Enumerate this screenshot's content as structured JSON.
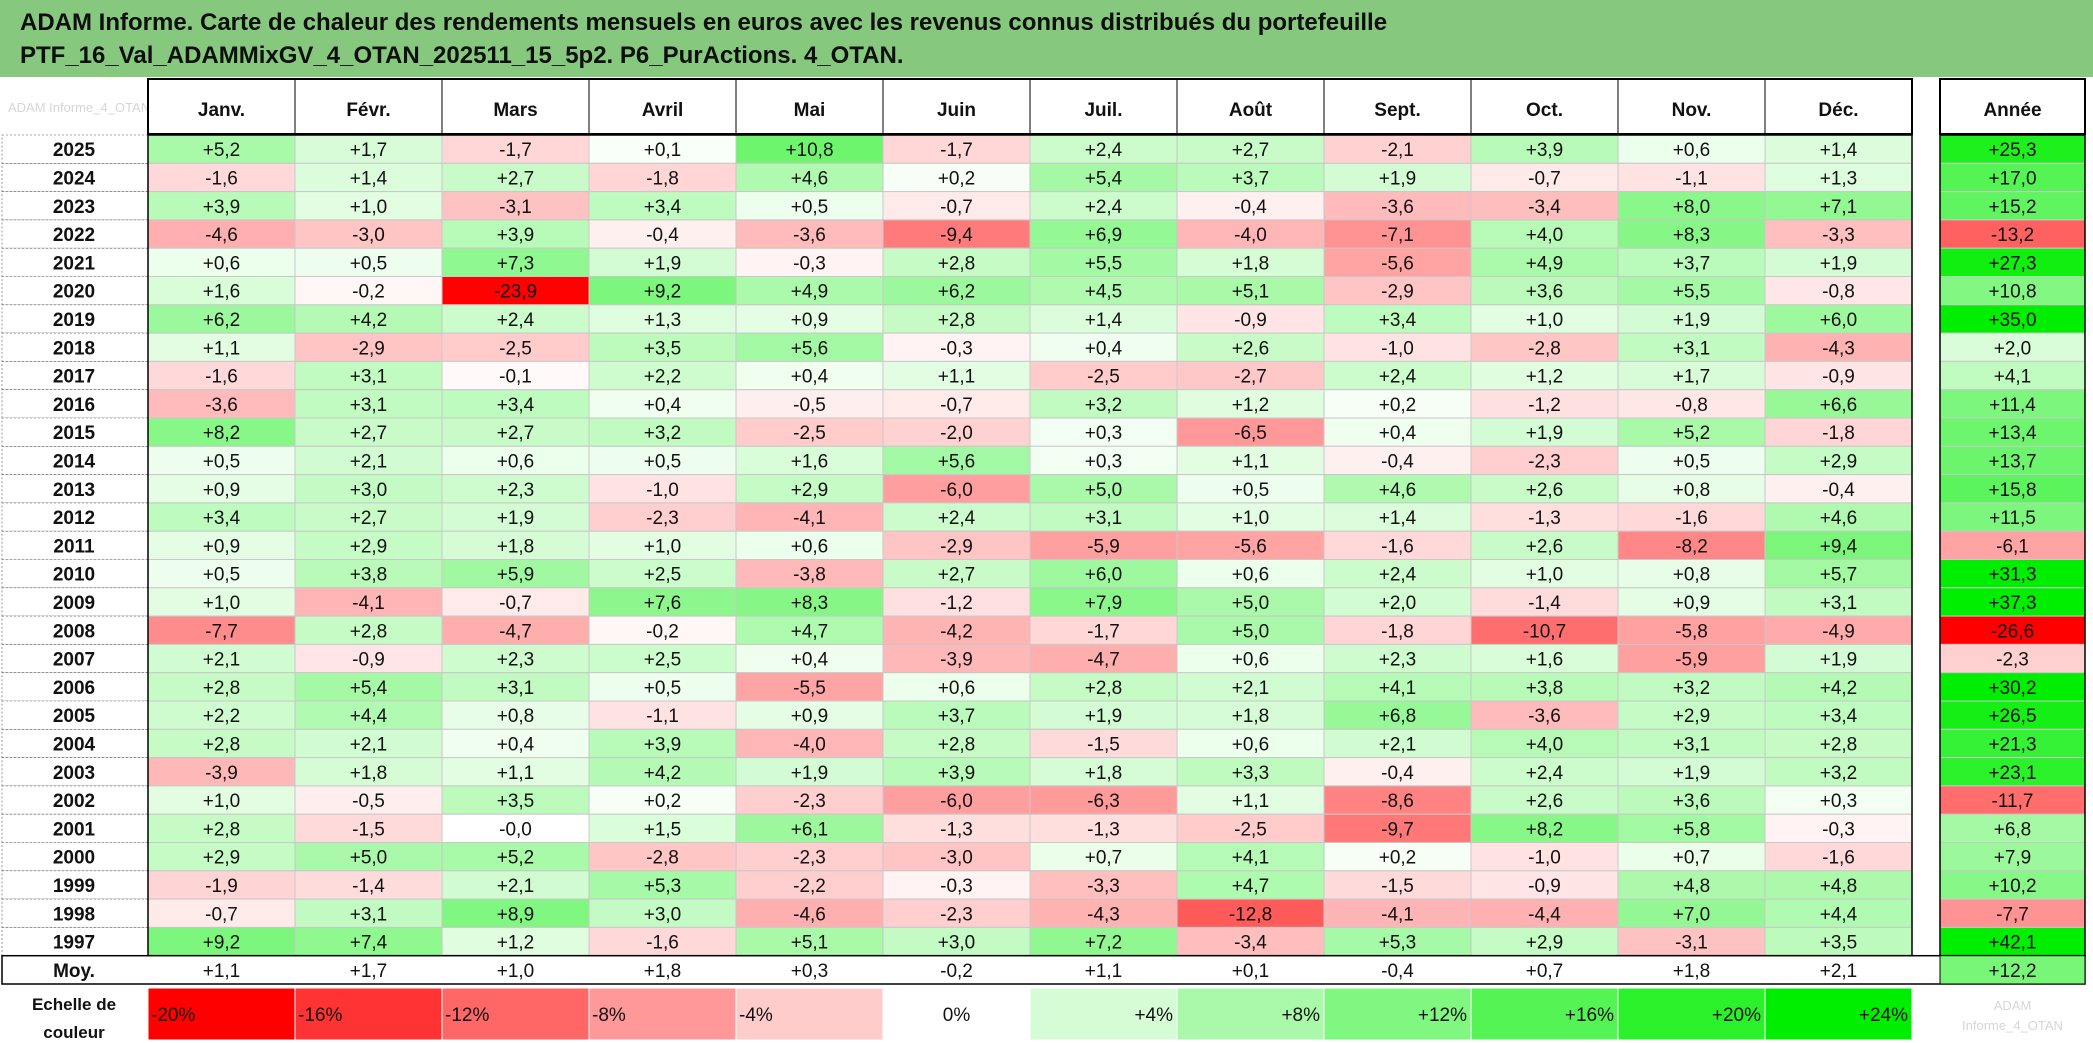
{
  "chart_data": {
    "type": "heatmap",
    "title_line1": "ADAM Informe. Carte de chaleur des rendements mensuels en euros avec les revenus connus distribués du portefeuille",
    "title_line2": "PTF_16_Val_ADAMMixGV_4_OTAN_202511_15_5p2. P6_PurActions. 4_OTAN.",
    "corner_label": "ADAM Informe_4_OTAN",
    "columns": [
      "Janv.",
      "Févr.",
      "Mars",
      "Avril",
      "Mai",
      "Juin",
      "Juil.",
      "Août",
      "Sept.",
      "Oct.",
      "Nov.",
      "Déc."
    ],
    "year_column": "Année",
    "rows": [
      {
        "year": "2025",
        "months": [
          5.2,
          1.7,
          -1.7,
          0.1,
          10.8,
          -1.7,
          2.4,
          2.7,
          -2.1,
          3.9,
          0.6,
          1.4
        ],
        "annual": 25.3
      },
      {
        "year": "2024",
        "months": [
          -1.6,
          1.4,
          2.7,
          -1.8,
          4.6,
          0.2,
          5.4,
          3.7,
          1.9,
          -0.7,
          -1.1,
          1.3
        ],
        "annual": 17.0
      },
      {
        "year": "2023",
        "months": [
          3.9,
          1.0,
          -3.1,
          3.4,
          0.5,
          -0.7,
          2.4,
          -0.4,
          -3.6,
          -3.4,
          8.0,
          7.1
        ],
        "annual": 15.2
      },
      {
        "year": "2022",
        "months": [
          -4.6,
          -3.0,
          3.9,
          -0.4,
          -3.6,
          -9.4,
          6.9,
          -4.0,
          -7.1,
          4.0,
          8.3,
          -3.3
        ],
        "annual": -13.2
      },
      {
        "year": "2021",
        "months": [
          0.6,
          0.5,
          7.3,
          1.9,
          -0.3,
          2.8,
          5.5,
          1.8,
          -5.6,
          4.9,
          3.7,
          1.9
        ],
        "annual": 27.3
      },
      {
        "year": "2020",
        "months": [
          1.6,
          -0.2,
          -23.9,
          9.2,
          4.9,
          6.2,
          4.5,
          5.1,
          -2.9,
          3.6,
          5.5,
          -0.8
        ],
        "annual": 10.8
      },
      {
        "year": "2019",
        "months": [
          6.2,
          4.2,
          2.4,
          1.3,
          0.9,
          2.8,
          1.4,
          -0.9,
          3.4,
          1.0,
          1.9,
          6.0
        ],
        "annual": 35.0
      },
      {
        "year": "2018",
        "months": [
          1.1,
          -2.9,
          -2.5,
          3.5,
          5.6,
          -0.3,
          0.4,
          2.6,
          -1.0,
          -2.8,
          3.1,
          -4.3
        ],
        "annual": 2.0
      },
      {
        "year": "2017",
        "months": [
          -1.6,
          3.1,
          -0.1,
          2.2,
          0.4,
          1.1,
          -2.5,
          -2.7,
          2.4,
          1.2,
          1.7,
          -0.9
        ],
        "annual": 4.1
      },
      {
        "year": "2016",
        "months": [
          -3.6,
          3.1,
          3.4,
          0.4,
          -0.5,
          -0.7,
          3.2,
          1.2,
          0.2,
          -1.2,
          -0.8,
          6.6
        ],
        "annual": 11.4
      },
      {
        "year": "2015",
        "months": [
          8.2,
          2.7,
          2.7,
          3.2,
          -2.5,
          -2.0,
          0.3,
          -6.5,
          0.4,
          1.9,
          5.2,
          -1.8
        ],
        "annual": 13.4
      },
      {
        "year": "2014",
        "months": [
          0.5,
          2.1,
          0.6,
          0.5,
          1.6,
          5.6,
          0.3,
          1.1,
          -0.4,
          -2.3,
          0.5,
          2.9
        ],
        "annual": 13.7
      },
      {
        "year": "2013",
        "months": [
          0.9,
          3.0,
          2.3,
          -1.0,
          2.9,
          -6.0,
          5.0,
          0.5,
          4.6,
          2.6,
          0.8,
          -0.4
        ],
        "annual": 15.8
      },
      {
        "year": "2012",
        "months": [
          3.4,
          2.7,
          1.9,
          -2.3,
          -4.1,
          2.4,
          3.1,
          1.0,
          1.4,
          -1.3,
          -1.6,
          4.6
        ],
        "annual": 11.5
      },
      {
        "year": "2011",
        "months": [
          0.9,
          2.9,
          1.8,
          1.0,
          0.6,
          -2.9,
          -5.9,
          -5.6,
          -1.6,
          2.6,
          -8.2,
          9.4
        ],
        "annual": -6.1
      },
      {
        "year": "2010",
        "months": [
          0.5,
          3.8,
          5.9,
          2.5,
          -3.8,
          2.7,
          6.0,
          0.6,
          2.4,
          1.0,
          0.8,
          5.7
        ],
        "annual": 31.3
      },
      {
        "year": "2009",
        "months": [
          1.0,
          -4.1,
          -0.7,
          7.6,
          8.3,
          -1.2,
          7.9,
          5.0,
          2.0,
          -1.4,
          0.9,
          3.1
        ],
        "annual": 37.3
      },
      {
        "year": "2008",
        "months": [
          -7.7,
          2.8,
          -4.7,
          -0.2,
          4.7,
          -4.2,
          -1.7,
          5.0,
          -1.8,
          -10.7,
          -5.8,
          -4.9
        ],
        "annual": -26.6
      },
      {
        "year": "2007",
        "months": [
          2.1,
          -0.9,
          2.3,
          2.5,
          0.4,
          -3.9,
          -4.7,
          0.6,
          2.3,
          1.6,
          -5.9,
          1.9
        ],
        "annual": -2.3
      },
      {
        "year": "2006",
        "months": [
          2.8,
          5.4,
          3.1,
          0.5,
          -5.5,
          0.6,
          2.8,
          2.1,
          4.1,
          3.8,
          3.2,
          4.2
        ],
        "annual": 30.2
      },
      {
        "year": "2005",
        "months": [
          2.2,
          4.4,
          0.8,
          -1.1,
          0.9,
          3.7,
          1.9,
          1.8,
          6.8,
          -3.6,
          2.9,
          3.4
        ],
        "annual": 26.5
      },
      {
        "year": "2004",
        "months": [
          2.8,
          2.1,
          0.4,
          3.9,
          -4.0,
          2.8,
          -1.5,
          0.6,
          2.1,
          4.0,
          3.1,
          2.8
        ],
        "annual": 21.3
      },
      {
        "year": "2003",
        "months": [
          -3.9,
          1.8,
          1.1,
          4.2,
          1.9,
          3.9,
          1.8,
          3.3,
          -0.4,
          2.4,
          1.9,
          3.2
        ],
        "annual": 23.1
      },
      {
        "year": "2002",
        "months": [
          1.0,
          -0.5,
          3.5,
          0.2,
          -2.3,
          -6.0,
          -6.3,
          1.1,
          -8.6,
          2.6,
          3.6,
          0.3
        ],
        "annual": -11.7
      },
      {
        "year": "2001",
        "months": [
          2.8,
          -1.5,
          -0.0,
          1.5,
          6.1,
          -1.3,
          -1.3,
          -2.5,
          -9.7,
          8.2,
          5.8,
          -0.3
        ],
        "annual": 6.8
      },
      {
        "year": "2000",
        "months": [
          2.9,
          5.0,
          5.2,
          -2.8,
          -2.3,
          -3.0,
          0.7,
          4.1,
          0.2,
          -1.0,
          0.7,
          -1.6
        ],
        "annual": 7.9
      },
      {
        "year": "1999",
        "months": [
          -1.9,
          -1.4,
          2.1,
          5.3,
          -2.2,
          -0.3,
          -3.3,
          4.7,
          -1.5,
          -0.9,
          4.8,
          4.8
        ],
        "annual": 10.2
      },
      {
        "year": "1998",
        "months": [
          -0.7,
          3.1,
          8.9,
          3.0,
          -4.6,
          -2.3,
          -4.3,
          -12.8,
          -4.1,
          -4.4,
          7.0,
          4.4
        ],
        "annual": -7.7
      },
      {
        "year": "1997",
        "months": [
          9.2,
          7.4,
          1.2,
          -1.6,
          5.1,
          3.0,
          7.2,
          -3.4,
          5.3,
          2.9,
          -3.1,
          3.5
        ],
        "annual": 42.1
      }
    ],
    "average_label": "Moy.",
    "average": {
      "months": [
        1.1,
        1.7,
        1.0,
        1.8,
        0.3,
        -0.2,
        1.1,
        0.1,
        -0.4,
        0.7,
        1.8,
        2.1
      ],
      "annual": 12.2
    },
    "scale_label_line1": "Echelle de",
    "scale_label_line2": "couleur",
    "scale": [
      "-20%",
      "-16%",
      "-12%",
      "-8%",
      "-4%",
      "0%",
      "+4%",
      "+8%",
      "+12%",
      "+16%",
      "+20%",
      "+24%"
    ],
    "scale_note_line1": "ADAM",
    "scale_note_line2": "Informe_4_OTAN",
    "colors": {
      "negative_full": "#ff0000",
      "positive_full": "#00ee00",
      "neutral": "#ffffff",
      "title_bg": "#86c87e"
    }
  }
}
